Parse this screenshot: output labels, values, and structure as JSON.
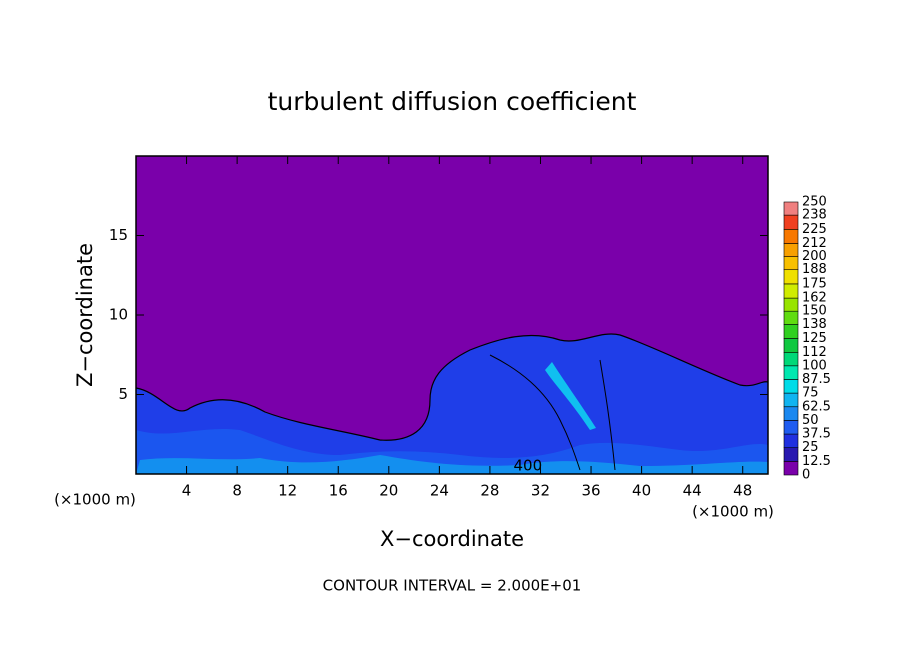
{
  "chart_data": {
    "type": "contour",
    "title": "turbulent diffusion coefficient",
    "xlabel": "X−coordinate",
    "ylabel": "Z−coordinate",
    "x_unit": "(×1000 m)",
    "y_unit": "(×1000 m)",
    "xlim": [
      0,
      50
    ],
    "ylim": [
      0,
      20
    ],
    "xticks": [
      4,
      8,
      12,
      16,
      20,
      24,
      28,
      32,
      36,
      40,
      44,
      48
    ],
    "yticks": [
      5,
      10,
      15
    ],
    "background_color": "#7a00aa",
    "colorbar": {
      "ticks": [
        0,
        12.5,
        25,
        37.5,
        50,
        62.5,
        75,
        87.5,
        100,
        112,
        125,
        138,
        150,
        162,
        175,
        188,
        200,
        212,
        225,
        238,
        250
      ],
      "colors": [
        "#7a00aa",
        "#2818b0",
        "#2030e0",
        "#1f5cf0",
        "#1a88f0",
        "#10b4f0",
        "#00dce8",
        "#00e8b0",
        "#00d878",
        "#10c840",
        "#30d020",
        "#60dc10",
        "#98e400",
        "#d0ec00",
        "#f0e000",
        "#f8c000",
        "#f8a000",
        "#f87800",
        "#f04020",
        "#f08080"
      ]
    },
    "annotations": [
      {
        "text": "400",
        "x": 31,
        "y": 0.5
      }
    ],
    "footer": "CONTOUR INTERVAL = 2.000E+01"
  }
}
